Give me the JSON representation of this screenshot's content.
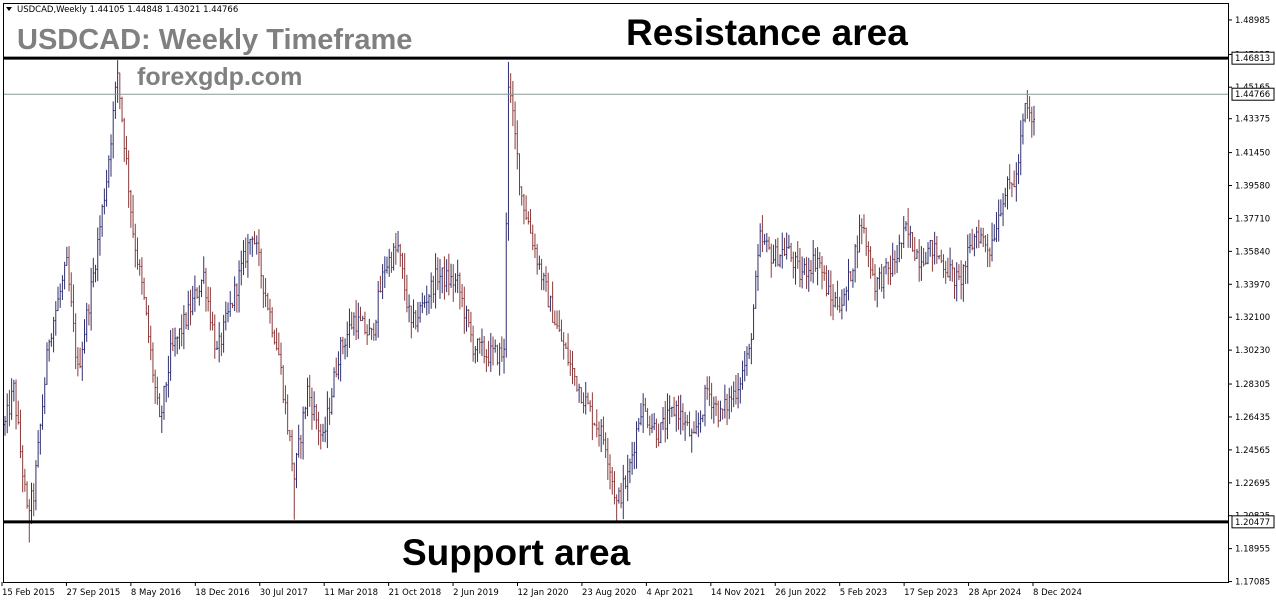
{
  "chart_data": {
    "type": "candlestick",
    "symbol_header": "USDCAD,Weekly  1.44105 1.44848 1.43021 1.44766",
    "watermark_title": "USDCAD: Weekly Timeframe",
    "watermark_site": "forexgdp.com",
    "resistance_label": "Resistance area",
    "support_label": "Support area",
    "ylim": [
      1.1706,
      1.4989
    ],
    "y_ticks": [
      "1.48985",
      "1.47025",
      "1.45165",
      "1.43375",
      "1.41450",
      "1.39580",
      "1.37710",
      "1.35840",
      "1.33970",
      "1.32100",
      "1.30230",
      "1.28305",
      "1.26435",
      "1.24565",
      "1.22695",
      "1.20825",
      "1.18955",
      "1.17085"
    ],
    "x_ticks": [
      "15 Feb 2015",
      "27 Sep 2015",
      "8 May 2016",
      "18 Dec 2016",
      "30 Jul 2017",
      "11 Mar 2018",
      "21 Oct 2018",
      "2 Jun 2019",
      "12 Jan 2020",
      "23 Aug 2020",
      "4 Apr 2021",
      "14 Nov 2021",
      "26 Jun 2022",
      "5 Feb 2023",
      "17 Sep 2023",
      "28 Apr 2024",
      "8 Dec 2024"
    ],
    "resistance_level": 1.46813,
    "support_level": 1.20477,
    "current_price": 1.44766,
    "resistance_badge": "1.46813",
    "support_badge": "1.20477",
    "current_badge": "1.44766",
    "path_anchors": [
      [
        0,
        1.26
      ],
      [
        4,
        1.28
      ],
      [
        10,
        1.21
      ],
      [
        13,
        1.22
      ],
      [
        20,
        1.31
      ],
      [
        28,
        1.35
      ],
      [
        33,
        1.29
      ],
      [
        40,
        1.345
      ],
      [
        46,
        1.4
      ],
      [
        51,
        1.46
      ],
      [
        58,
        1.37
      ],
      [
        63,
        1.33
      ],
      [
        70,
        1.26
      ],
      [
        75,
        1.3
      ],
      [
        82,
        1.32
      ],
      [
        90,
        1.345
      ],
      [
        96,
        1.3
      ],
      [
        104,
        1.335
      ],
      [
        112,
        1.37
      ],
      [
        117,
        1.34
      ],
      [
        124,
        1.3
      ],
      [
        131,
        1.23
      ],
      [
        137,
        1.28
      ],
      [
        144,
        1.25
      ],
      [
        151,
        1.3
      ],
      [
        158,
        1.32
      ],
      [
        166,
        1.31
      ],
      [
        172,
        1.35
      ],
      [
        178,
        1.36
      ],
      [
        184,
        1.315
      ],
      [
        190,
        1.33
      ],
      [
        196,
        1.345
      ],
      [
        205,
        1.34
      ],
      [
        212,
        1.305
      ],
      [
        218,
        1.3
      ],
      [
        226,
        1.3
      ],
      [
        228,
        1.455
      ],
      [
        234,
        1.39
      ],
      [
        239,
        1.365
      ],
      [
        244,
        1.34
      ],
      [
        250,
        1.315
      ],
      [
        257,
        1.29
      ],
      [
        264,
        1.27
      ],
      [
        272,
        1.25
      ],
      [
        277,
        1.215
      ],
      [
        282,
        1.23
      ],
      [
        288,
        1.27
      ],
      [
        296,
        1.255
      ],
      [
        304,
        1.27
      ],
      [
        312,
        1.25
      ],
      [
        318,
        1.28
      ],
      [
        324,
        1.265
      ],
      [
        331,
        1.28
      ],
      [
        337,
        1.3
      ],
      [
        342,
        1.365
      ],
      [
        348,
        1.355
      ],
      [
        354,
        1.36
      ],
      [
        360,
        1.345
      ],
      [
        368,
        1.355
      ],
      [
        374,
        1.33
      ],
      [
        380,
        1.33
      ],
      [
        388,
        1.375
      ],
      [
        394,
        1.34
      ],
      [
        402,
        1.35
      ],
      [
        408,
        1.37
      ],
      [
        414,
        1.355
      ],
      [
        420,
        1.36
      ],
      [
        426,
        1.35
      ],
      [
        432,
        1.34
      ],
      [
        440,
        1.37
      ],
      [
        446,
        1.36
      ],
      [
        452,
        1.39
      ],
      [
        458,
        1.4
      ],
      [
        462,
        1.44
      ],
      [
        466,
        1.43
      ]
    ],
    "total_weeks": 467
  }
}
